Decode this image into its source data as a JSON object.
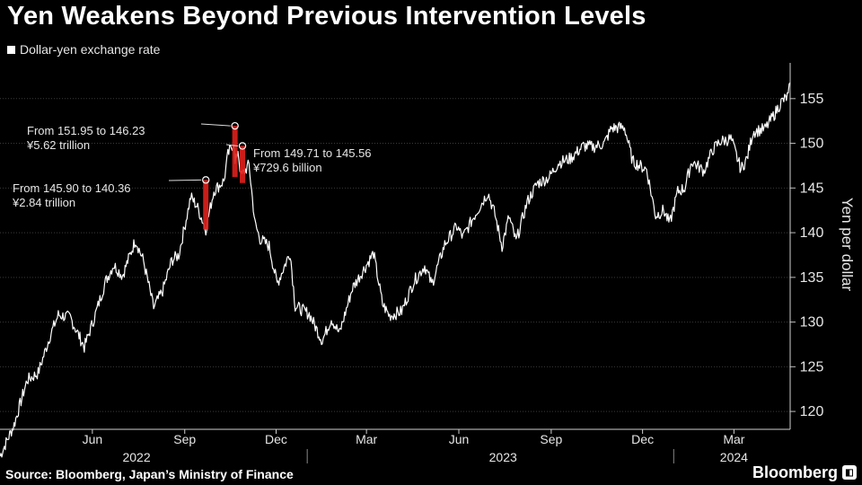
{
  "title": "Yen Weakens Beyond Previous Intervention Levels",
  "legend": {
    "label": "Dollar-yen exchange rate",
    "color": "#ffffff"
  },
  "source": "Source: Bloomberg, Japan’s Ministry of Finance",
  "brand": "Bloomberg",
  "chart_data": {
    "type": "line",
    "title": "Yen Weakens Beyond Previous Intervention Levels",
    "ylabel": "Yen per dollar",
    "ylim": [
      118,
      159
    ],
    "yticks": [
      120,
      125,
      130,
      135,
      140,
      145,
      150,
      155
    ],
    "xlim": [
      "2022-03-01",
      "2024-04-26"
    ],
    "x_ticks": [
      {
        "date": "2022-06-01",
        "label": "Jun"
      },
      {
        "date": "2022-09-01",
        "label": "Sep"
      },
      {
        "date": "2022-12-01",
        "label": "Dec"
      },
      {
        "date": "2023-03-01",
        "label": "Mar"
      },
      {
        "date": "2023-06-01",
        "label": "Jun"
      },
      {
        "date": "2023-09-01",
        "label": "Sep"
      },
      {
        "date": "2023-12-01",
        "label": "Dec"
      },
      {
        "date": "2024-03-01",
        "label": "Mar"
      }
    ],
    "year_labels": [
      {
        "date": "2022-07-15",
        "label": "2022"
      },
      {
        "date": "2023-07-15",
        "label": "2023"
      },
      {
        "date": "2024-03-01",
        "label": "2024"
      }
    ],
    "year_dividers": [
      "2023-01-01",
      "2024-01-01"
    ],
    "line_color": "#ffffff",
    "intervention_color": "#e0201c",
    "series": [
      {
        "points": [
          [
            "2022-03-01",
            115.0
          ],
          [
            "2022-03-15",
            118.5
          ],
          [
            "2022-03-28",
            123.5
          ],
          [
            "2022-04-08",
            124.3
          ],
          [
            "2022-04-20",
            128.5
          ],
          [
            "2022-04-28",
            130.8
          ],
          [
            "2022-05-10",
            130.5
          ],
          [
            "2022-05-24",
            127.2
          ],
          [
            "2022-06-03",
            130.5
          ],
          [
            "2022-06-14",
            134.5
          ],
          [
            "2022-06-22",
            136.4
          ],
          [
            "2022-07-01",
            135.2
          ],
          [
            "2022-07-14",
            139.2
          ],
          [
            "2022-07-22",
            136.8
          ],
          [
            "2022-08-01",
            131.6
          ],
          [
            "2022-08-10",
            133.5
          ],
          [
            "2022-08-19",
            136.9
          ],
          [
            "2022-08-26",
            137.5
          ],
          [
            "2022-09-07",
            144.0
          ],
          [
            "2022-09-13",
            143.0
          ],
          [
            "2022-09-22",
            140.4
          ],
          [
            "2022-09-30",
            144.7
          ],
          [
            "2022-10-10",
            145.8
          ],
          [
            "2022-10-14",
            148.7
          ],
          [
            "2022-10-20",
            150.2
          ],
          [
            "2022-10-21",
            147.6
          ],
          [
            "2022-10-24",
            149.3
          ],
          [
            "2022-10-27",
            146.3
          ],
          [
            "2022-11-04",
            147.6
          ],
          [
            "2022-11-10",
            141.0
          ],
          [
            "2022-11-15",
            139.3
          ],
          [
            "2022-11-24",
            138.5
          ],
          [
            "2022-12-02",
            134.3
          ],
          [
            "2022-12-15",
            137.8
          ],
          [
            "2022-12-20",
            131.8
          ],
          [
            "2023-01-03",
            130.9
          ],
          [
            "2023-01-16",
            127.9
          ],
          [
            "2023-01-25",
            130.4
          ],
          [
            "2023-02-02",
            128.7
          ],
          [
            "2023-02-15",
            133.8
          ],
          [
            "2023-02-28",
            136.2
          ],
          [
            "2023-03-08",
            137.7
          ],
          [
            "2023-03-17",
            132.0
          ],
          [
            "2023-03-24",
            130.7
          ],
          [
            "2023-04-05",
            131.2
          ],
          [
            "2023-04-17",
            134.5
          ],
          [
            "2023-04-28",
            136.3
          ],
          [
            "2023-05-05",
            134.2
          ],
          [
            "2023-05-18",
            138.7
          ],
          [
            "2023-05-30",
            140.7
          ],
          [
            "2023-06-05",
            139.5
          ],
          [
            "2023-06-16",
            141.8
          ],
          [
            "2023-06-30",
            144.5
          ],
          [
            "2023-07-07",
            142.0
          ],
          [
            "2023-07-14",
            138.5
          ],
          [
            "2023-07-21",
            141.8
          ],
          [
            "2023-07-28",
            139.0
          ],
          [
            "2023-08-08",
            143.4
          ],
          [
            "2023-08-18",
            145.5
          ],
          [
            "2023-08-30",
            146.2
          ],
          [
            "2023-09-08",
            147.8
          ],
          [
            "2023-09-20",
            148.3
          ],
          [
            "2023-10-03",
            149.7
          ],
          [
            "2023-10-13",
            149.6
          ],
          [
            "2023-10-24",
            150.0
          ],
          [
            "2023-10-31",
            151.7
          ],
          [
            "2023-11-13",
            151.8
          ],
          [
            "2023-11-21",
            148.0
          ],
          [
            "2023-11-28",
            147.5
          ],
          [
            "2023-12-05",
            147.1
          ],
          [
            "2023-12-14",
            141.9
          ],
          [
            "2023-12-22",
            142.5
          ],
          [
            "2023-12-28",
            141.0
          ],
          [
            "2024-01-05",
            144.6
          ],
          [
            "2024-01-12",
            145.0
          ],
          [
            "2024-01-19",
            148.0
          ],
          [
            "2024-01-31",
            146.9
          ],
          [
            "2024-02-09",
            149.3
          ],
          [
            "2024-02-16",
            150.2
          ],
          [
            "2024-02-27",
            150.5
          ],
          [
            "2024-03-08",
            147.1
          ],
          [
            "2024-03-14",
            148.3
          ],
          [
            "2024-03-20",
            151.3
          ],
          [
            "2024-04-01",
            151.6
          ],
          [
            "2024-04-10",
            153.2
          ],
          [
            "2024-04-17",
            154.6
          ],
          [
            "2024-04-24",
            155.3
          ],
          [
            "2024-04-26",
            156.8
          ]
        ]
      }
    ],
    "interventions": [
      {
        "date": "2022-09-22",
        "from": 145.9,
        "to": 140.36,
        "text": [
          "From 145.90 to 140.36",
          "¥2.84 trillion"
        ]
      },
      {
        "date": "2022-10-21",
        "from": 151.95,
        "to": 146.23,
        "text": [
          "From 151.95 to 146.23",
          "¥5.62 trillion"
        ]
      },
      {
        "date": "2022-10-24",
        "from": 149.71,
        "to": 145.56,
        "text": [
          "From 149.71 to 145.56",
          "¥729.6 billion"
        ]
      }
    ]
  }
}
